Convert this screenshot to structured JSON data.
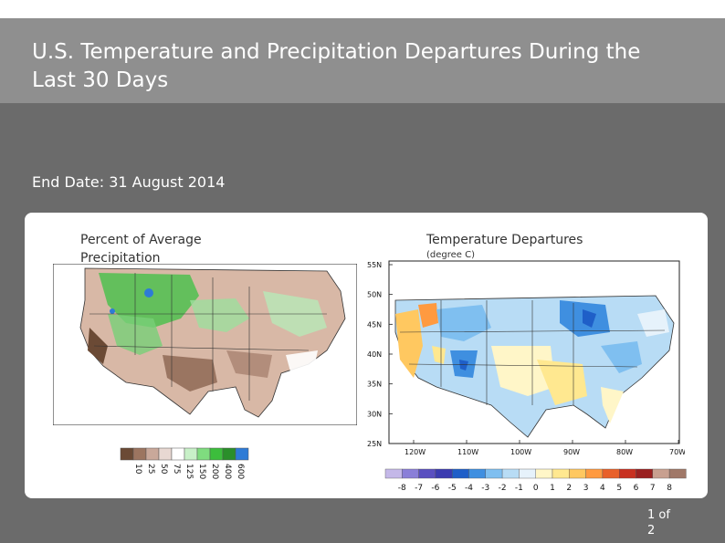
{
  "slide": {
    "title": "U.S. Temperature and Precipitation Departures During the Last 30 Days",
    "end_date": "End Date: 31 August 2014",
    "page_number": "1 of 2"
  },
  "precip_map": {
    "title": "Percent of Average Precipitation",
    "legend_labels": [
      "10",
      "25",
      "50",
      "75",
      "125",
      "150",
      "200",
      "400",
      "600"
    ],
    "legend_colors": [
      "#6b4a35",
      "#9c7560",
      "#c9a89a",
      "#e8d8d2",
      "#ffffff",
      "#c8f0c8",
      "#7fdc7f",
      "#3cbe3c",
      "#2a8f2a",
      "#2e7bd6"
    ]
  },
  "temp_map": {
    "title": "Temperature Departures",
    "units": "(degree C)",
    "lat_labels": [
      "55N",
      "50N",
      "45N",
      "40N",
      "35N",
      "30N",
      "25N"
    ],
    "lon_labels": [
      "120W",
      "110W",
      "100W",
      "90W",
      "80W",
      "70W"
    ],
    "legend_labels": [
      "-8",
      "-7",
      "-6",
      "-5",
      "-4",
      "-3",
      "-2",
      "-1",
      "0",
      "1",
      "2",
      "3",
      "4",
      "5",
      "6",
      "7",
      "8"
    ],
    "legend_colors": [
      "#c4b8e8",
      "#8a7fd8",
      "#5a4fc0",
      "#3b3bb0",
      "#1f5fc8",
      "#3f8fe0",
      "#7fbff0",
      "#b8dcf5",
      "#e6f2fb",
      "#fff6c8",
      "#ffe890",
      "#ffc860",
      "#ff9a40",
      "#e8602a",
      "#c83020",
      "#9a2020",
      "#c8a090",
      "#a07868"
    ]
  }
}
